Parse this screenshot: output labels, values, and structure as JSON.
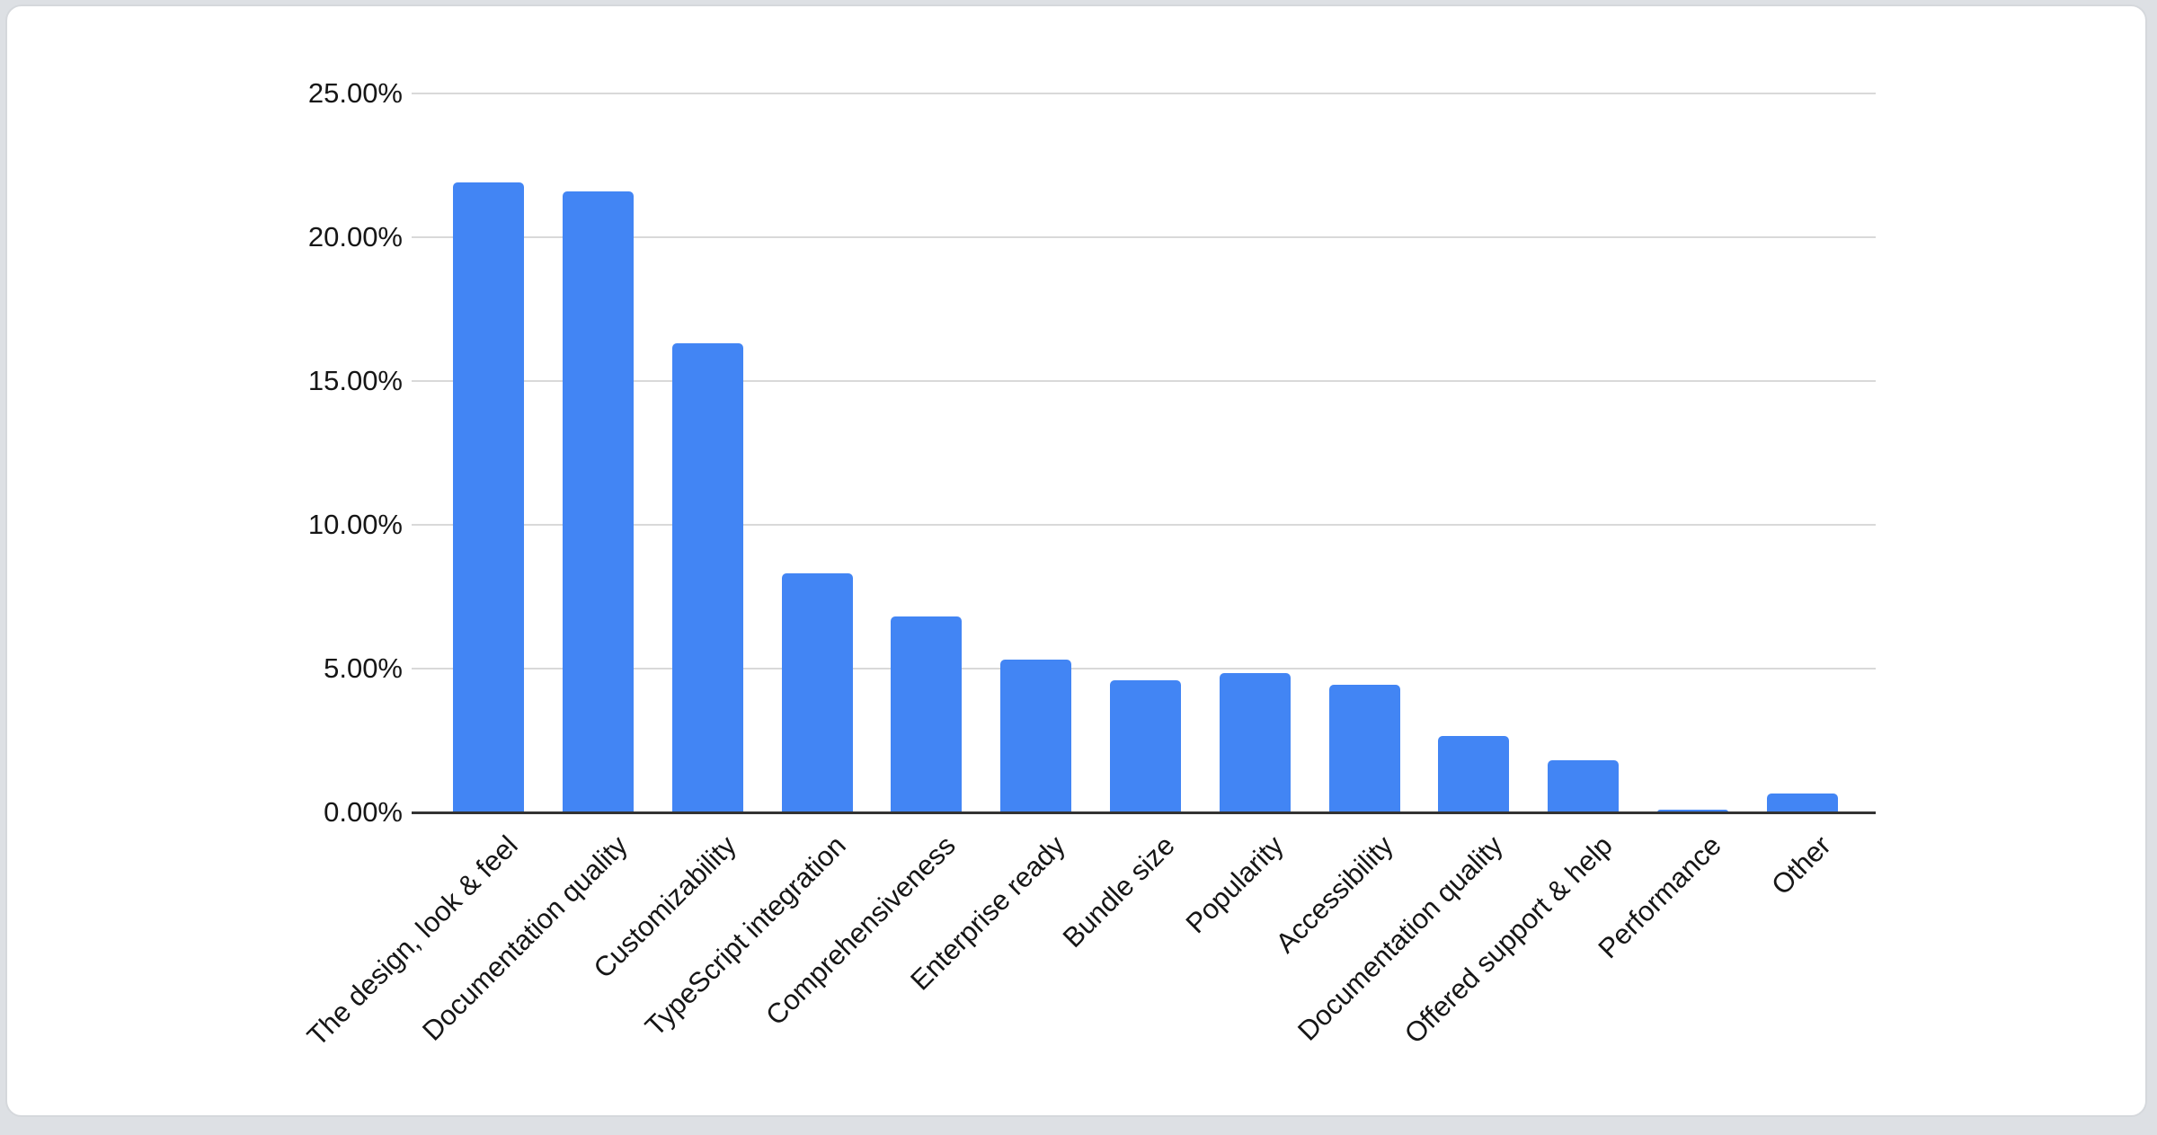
{
  "page": {
    "background_color": "#dde0e4"
  },
  "card": {
    "background_color": "#ffffff",
    "border_color": "#d5d8dc"
  },
  "chart_data": {
    "type": "bar",
    "title": "",
    "categories": [
      "The design, look & feel",
      "Documentation quality",
      "Customizability",
      "TypeScript integration",
      "Comprehensiveness",
      "Enterprise ready",
      "Bundle size",
      "Popularity",
      "Accessibility",
      "Documentation quality",
      "Offered support & help",
      "Performance",
      "Other"
    ],
    "values": [
      21.9,
      21.6,
      16.3,
      8.3,
      6.8,
      5.3,
      4.6,
      4.85,
      4.45,
      2.65,
      1.8,
      0.1,
      0.65
    ],
    "value_unit": "percent",
    "xlabel": "",
    "ylabel": "",
    "ylim": [
      0,
      25
    ],
    "y_ticks": [
      {
        "value": 25,
        "label": "25.00%"
      },
      {
        "value": 20,
        "label": "20.00%"
      },
      {
        "value": 15,
        "label": "15.00%"
      },
      {
        "value": 10,
        "label": "10.00%"
      },
      {
        "value": 5,
        "label": "5.00%"
      },
      {
        "value": 0,
        "label": "0.00%"
      }
    ],
    "grid": true,
    "legend_position": "none",
    "x_label_rotation_deg": 45,
    "bar_color": "#4285f4",
    "gridline_color": "#d9d9d9",
    "axis_line_color": "#333333",
    "label_color": "#161616"
  }
}
